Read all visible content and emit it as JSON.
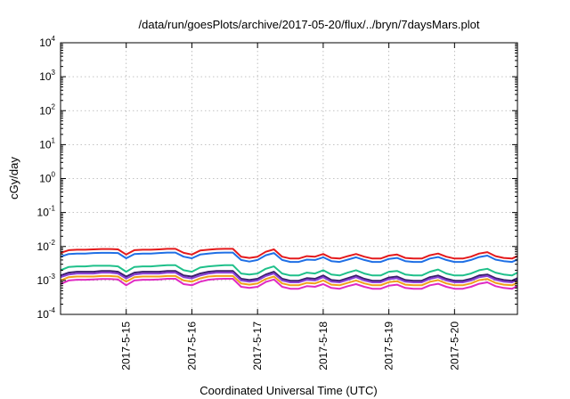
{
  "chart_data": {
    "type": "line",
    "title": "/data/run/goesPlots/archive/2017-05-20/flux/../bryn/7daysMars.plot",
    "xlabel": "Coordinated Universal Time (UTC)",
    "ylabel": "cGy/day",
    "yscale": "log",
    "ylim": [
      0.0001,
      10000
    ],
    "y_ticks": [
      {
        "base": "10",
        "exp": "-4",
        "value": 0.0001
      },
      {
        "base": "10",
        "exp": "-3",
        "value": 0.001
      },
      {
        "base": "10",
        "exp": "-2",
        "value": 0.01
      },
      {
        "base": "10",
        "exp": "-1",
        "value": 0.1
      },
      {
        "base": "10",
        "exp": "0",
        "value": 1
      },
      {
        "base": "10",
        "exp": "1",
        "value": 10
      },
      {
        "base": "10",
        "exp": "2",
        "value": 100
      },
      {
        "base": "10",
        "exp": "3",
        "value": 1000
      },
      {
        "base": "10",
        "exp": "4",
        "value": 10000
      }
    ],
    "xlim": [
      "2017-05-14 00:00",
      "2017-05-20 23:00"
    ],
    "x_ticks": [
      "2017-5-15",
      "2017-5-16",
      "2017-5-17",
      "2017-5-18",
      "2017-5-19",
      "2017-5-20"
    ],
    "x_tick_values": [
      "2017-05-15 00:00",
      "2017-05-16 00:00",
      "2017-05-17 00:00",
      "2017-05-18 00:00",
      "2017-05-19 00:00",
      "2017-05-20 00:00"
    ],
    "grid": true,
    "legend": "none",
    "x": [
      "2017-05-14 00:00",
      "2017-05-14 03:00",
      "2017-05-14 06:00",
      "2017-05-14 09:00",
      "2017-05-14 12:00",
      "2017-05-14 15:00",
      "2017-05-14 18:00",
      "2017-05-14 21:00",
      "2017-05-15 00:00",
      "2017-05-15 03:00",
      "2017-05-15 06:00",
      "2017-05-15 09:00",
      "2017-05-15 12:00",
      "2017-05-15 15:00",
      "2017-05-15 18:00",
      "2017-05-15 21:00",
      "2017-05-16 00:00",
      "2017-05-16 03:00",
      "2017-05-16 06:00",
      "2017-05-16 09:00",
      "2017-05-16 12:00",
      "2017-05-16 15:00",
      "2017-05-16 18:00",
      "2017-05-16 21:00",
      "2017-05-17 00:00",
      "2017-05-17 03:00",
      "2017-05-17 06:00",
      "2017-05-17 09:00",
      "2017-05-17 12:00",
      "2017-05-17 15:00",
      "2017-05-17 18:00",
      "2017-05-17 21:00",
      "2017-05-18 00:00",
      "2017-05-18 03:00",
      "2017-05-18 06:00",
      "2017-05-18 09:00",
      "2017-05-18 12:00",
      "2017-05-18 15:00",
      "2017-05-18 18:00",
      "2017-05-18 21:00",
      "2017-05-19 00:00",
      "2017-05-19 03:00",
      "2017-05-19 06:00",
      "2017-05-19 09:00",
      "2017-05-19 12:00",
      "2017-05-19 15:00",
      "2017-05-19 18:00",
      "2017-05-19 21:00",
      "2017-05-20 00:00",
      "2017-05-20 03:00",
      "2017-05-20 06:00",
      "2017-05-20 09:00",
      "2017-05-20 12:00",
      "2017-05-20 15:00",
      "2017-05-20 18:00",
      "2017-05-20 21:00",
      "2017-05-20 23:00"
    ],
    "series": [
      {
        "color": "#e41a1c",
        "values": [
          0.0065,
          0.0078,
          0.008,
          0.008,
          0.0082,
          0.0084,
          0.0084,
          0.0082,
          0.0058,
          0.0078,
          0.008,
          0.008,
          0.0082,
          0.0085,
          0.0085,
          0.0065,
          0.0058,
          0.0076,
          0.008,
          0.0084,
          0.0085,
          0.0085,
          0.005,
          0.0046,
          0.005,
          0.007,
          0.0082,
          0.005,
          0.0044,
          0.0044,
          0.0052,
          0.005,
          0.006,
          0.0046,
          0.0044,
          0.0052,
          0.006,
          0.005,
          0.0044,
          0.0044,
          0.0054,
          0.0058,
          0.0046,
          0.0044,
          0.0044,
          0.0055,
          0.0062,
          0.005,
          0.0044,
          0.0044,
          0.005,
          0.0062,
          0.0068,
          0.0052,
          0.0046,
          0.0044,
          0.0052
        ]
      },
      {
        "color": "#1f6fe5",
        "values": [
          0.005,
          0.006,
          0.0062,
          0.0062,
          0.0064,
          0.0065,
          0.0065,
          0.0064,
          0.0045,
          0.006,
          0.0062,
          0.0062,
          0.0064,
          0.0066,
          0.0066,
          0.005,
          0.0045,
          0.0058,
          0.0062,
          0.0065,
          0.0066,
          0.0066,
          0.004,
          0.0036,
          0.004,
          0.0055,
          0.0064,
          0.004,
          0.0035,
          0.0035,
          0.0041,
          0.004,
          0.0048,
          0.0037,
          0.0035,
          0.0041,
          0.0048,
          0.004,
          0.0035,
          0.0035,
          0.0043,
          0.0046,
          0.0037,
          0.0035,
          0.0035,
          0.0044,
          0.0049,
          0.004,
          0.0035,
          0.0035,
          0.004,
          0.0049,
          0.0054,
          0.0041,
          0.0037,
          0.0035,
          0.0041
        ]
      },
      {
        "color": "#1fc08a",
        "values": [
          0.002,
          0.0025,
          0.0026,
          0.0026,
          0.0027,
          0.0027,
          0.0027,
          0.0026,
          0.0018,
          0.0025,
          0.0026,
          0.0026,
          0.0027,
          0.0028,
          0.0028,
          0.002,
          0.0018,
          0.0024,
          0.0026,
          0.0027,
          0.0028,
          0.0028,
          0.0016,
          0.0015,
          0.0016,
          0.0022,
          0.0026,
          0.0016,
          0.0014,
          0.0014,
          0.0017,
          0.0016,
          0.002,
          0.0015,
          0.0014,
          0.0017,
          0.002,
          0.0016,
          0.0014,
          0.0014,
          0.0018,
          0.0019,
          0.0015,
          0.0014,
          0.0014,
          0.0018,
          0.0021,
          0.0016,
          0.0014,
          0.0014,
          0.0016,
          0.002,
          0.0022,
          0.0017,
          0.0015,
          0.0014,
          0.0017
        ]
      },
      {
        "color": "#3a1f6e",
        "values": [
          0.0014,
          0.0017,
          0.0018,
          0.0018,
          0.0018,
          0.0019,
          0.0019,
          0.0018,
          0.0013,
          0.0017,
          0.0018,
          0.0018,
          0.0018,
          0.0019,
          0.0019,
          0.0014,
          0.0013,
          0.0016,
          0.0018,
          0.0019,
          0.0019,
          0.0019,
          0.00112,
          0.00103,
          0.00112,
          0.0015,
          0.0018,
          0.00112,
          0.00098,
          0.00098,
          0.00117,
          0.00112,
          0.0014,
          0.00103,
          0.00098,
          0.00117,
          0.0014,
          0.00112,
          0.00098,
          0.00098,
          0.00122,
          0.0013,
          0.00103,
          0.00098,
          0.00098,
          0.00125,
          0.0014,
          0.00112,
          0.00098,
          0.00098,
          0.00112,
          0.0014,
          0.0015,
          0.00117,
          0.00103,
          0.00098,
          0.00117
        ]
      },
      {
        "color": "#8a3fd6",
        "values": [
          0.00125,
          0.0015,
          0.0016,
          0.0016,
          0.0016,
          0.0017,
          0.0017,
          0.0016,
          0.00115,
          0.0015,
          0.0016,
          0.0016,
          0.0016,
          0.0017,
          0.0017,
          0.00125,
          0.00115,
          0.0014,
          0.0016,
          0.0017,
          0.0017,
          0.0017,
          0.001,
          0.00092,
          0.001,
          0.00135,
          0.0016,
          0.001,
          0.00088,
          0.00088,
          0.00104,
          0.001,
          0.00125,
          0.00092,
          0.00088,
          0.00104,
          0.00125,
          0.001,
          0.00088,
          0.00088,
          0.00109,
          0.00116,
          0.00092,
          0.00088,
          0.00088,
          0.00111,
          0.00125,
          0.001,
          0.00088,
          0.00088,
          0.001,
          0.00125,
          0.00135,
          0.00104,
          0.00092,
          0.00088,
          0.00104
        ]
      },
      {
        "color": "#f0a11c",
        "values": [
          0.001,
          0.00125,
          0.0013,
          0.0013,
          0.0013,
          0.00135,
          0.00135,
          0.0013,
          0.00092,
          0.00125,
          0.0013,
          0.0013,
          0.0013,
          0.00135,
          0.00135,
          0.001,
          0.00092,
          0.00115,
          0.0013,
          0.00135,
          0.00135,
          0.00135,
          0.00082,
          0.00075,
          0.00082,
          0.0011,
          0.0013,
          0.00082,
          0.00072,
          0.00072,
          0.00085,
          0.00082,
          0.001,
          0.00075,
          0.00072,
          0.00085,
          0.001,
          0.00082,
          0.00072,
          0.00072,
          0.00089,
          0.00095,
          0.00075,
          0.00072,
          0.00072,
          0.00091,
          0.00102,
          0.00082,
          0.00072,
          0.00072,
          0.00082,
          0.00102,
          0.0011,
          0.00085,
          0.00075,
          0.00072,
          0.00085
        ]
      },
      {
        "color": "#e02ac4",
        "values": [
          0.00078,
          0.001,
          0.00105,
          0.00105,
          0.00107,
          0.0011,
          0.0011,
          0.00107,
          0.00072,
          0.001,
          0.00105,
          0.00105,
          0.00107,
          0.00112,
          0.00112,
          0.00078,
          0.00072,
          0.00092,
          0.00105,
          0.0011,
          0.00112,
          0.00112,
          0.00065,
          0.0006,
          0.00065,
          0.0009,
          0.00107,
          0.00065,
          0.00057,
          0.00057,
          0.00068,
          0.00065,
          0.00078,
          0.0006,
          0.00057,
          0.00068,
          0.00078,
          0.00065,
          0.00057,
          0.00057,
          0.0007,
          0.00075,
          0.0006,
          0.00057,
          0.00057,
          0.00072,
          0.0008,
          0.00065,
          0.00057,
          0.00057,
          0.00065,
          0.0008,
          0.00088,
          0.00068,
          0.0006,
          0.00057,
          0.00068
        ]
      }
    ]
  }
}
